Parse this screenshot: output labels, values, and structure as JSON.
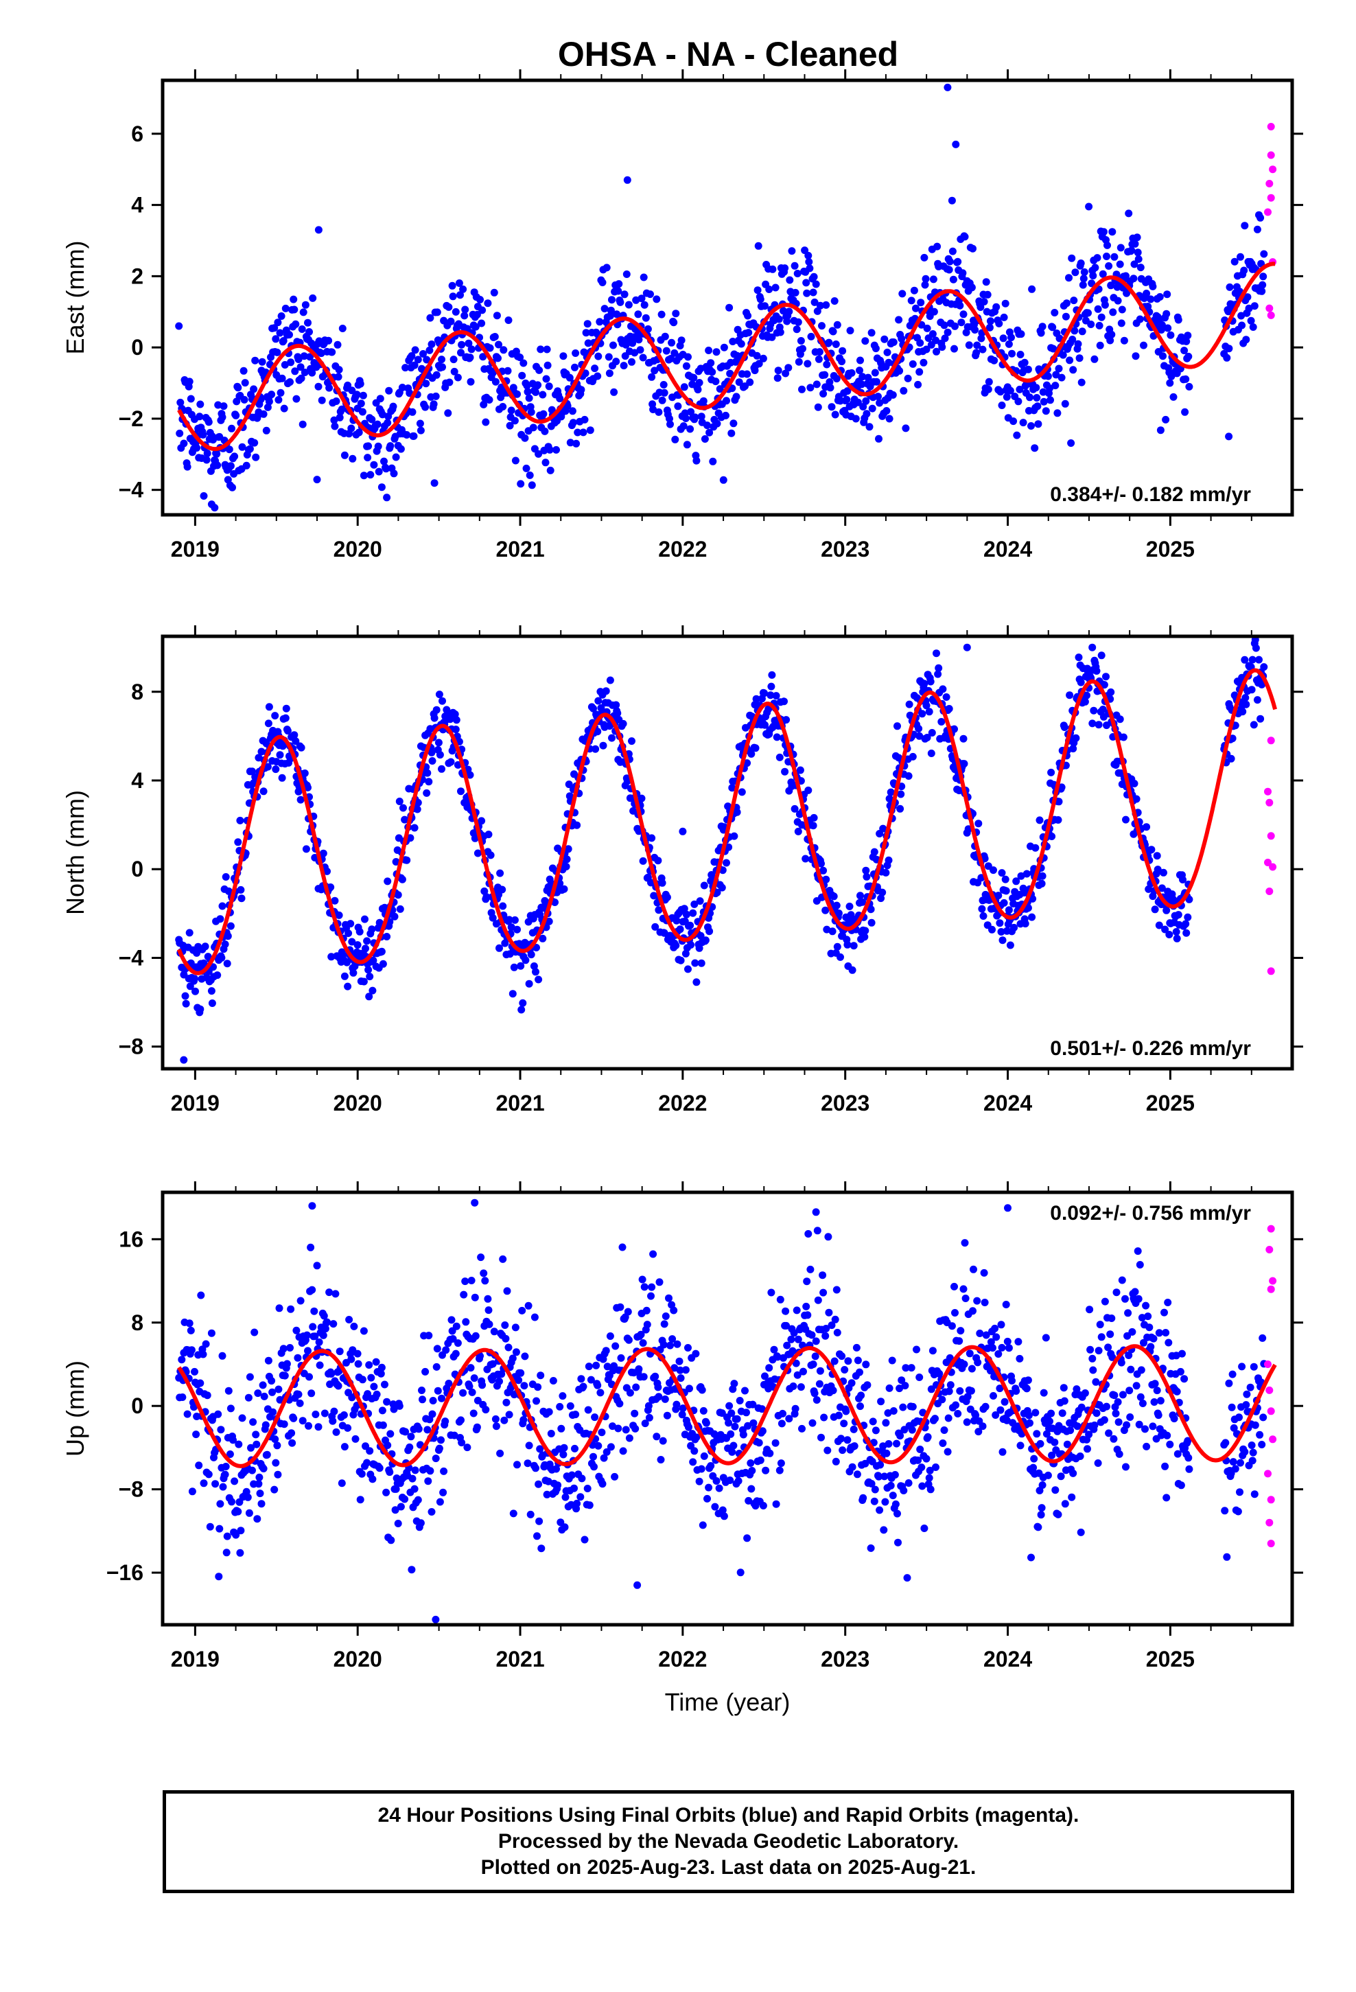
{
  "figure_title": "OHSA  - NA - Cleaned",
  "colors": {
    "final_orbits": "#0000ff",
    "rapid_orbits": "#ff00ff",
    "model_fit": "#ff0000",
    "frame": "#000000"
  },
  "chart_data": [
    {
      "type": "scatter",
      "panel": "east",
      "title": "OHSA  - NA - Cleaned",
      "ylabel": "East (mm)",
      "xlabel": "",
      "xlim": [
        2018.8,
        2025.75
      ],
      "ylim": [
        -4.7,
        7.5
      ],
      "yticks": [
        6,
        4,
        2,
        0,
        -2,
        -4
      ],
      "xticks": [
        2019,
        2020,
        2021,
        2022,
        2023,
        2024,
        2025
      ],
      "rate_label": "0.384+/- 0.182 mm/yr",
      "rate_position": "bottom-right",
      "fit": {
        "start": 2018.9,
        "end": 2025.65,
        "trend": 0.384,
        "intercept": -1.55,
        "ref_year": 2019.0,
        "annual_amp": 1.35,
        "annual_peak": 0.63,
        "offset_after": 2025.0,
        "gaps": []
      },
      "series": [
        {
          "name": "Final Orbits",
          "color": "#0000ff",
          "start": 2018.9,
          "end": 2025.58,
          "gaps": [
            [
              2025.12,
              2025.33
            ]
          ],
          "scatter": 0.85,
          "outliers": [
            [
              2023.63,
              7.3
            ],
            [
              2023.68,
              5.7
            ],
            [
              2021.66,
              4.7
            ],
            [
              2019.76,
              3.3
            ],
            [
              2025.36,
              -2.5
            ],
            [
              2019.12,
              -4.5
            ]
          ]
        },
        {
          "name": "Rapid Orbits",
          "color": "#ff00ff",
          "points": [
            [
              2025.62,
              6.2
            ],
            [
              2025.62,
              5.4
            ],
            [
              2025.63,
              5.0
            ],
            [
              2025.61,
              4.6
            ],
            [
              2025.62,
              4.2
            ],
            [
              2025.6,
              3.8
            ],
            [
              2025.63,
              2.4
            ],
            [
              2025.61,
              1.1
            ],
            [
              2025.62,
              0.9
            ]
          ]
        }
      ]
    },
    {
      "type": "scatter",
      "panel": "north",
      "ylabel": "North (mm)",
      "xlabel": "",
      "xlim": [
        2018.8,
        2025.75
      ],
      "ylim": [
        -9,
        10.5
      ],
      "yticks": [
        8,
        4,
        0,
        -4,
        -8
      ],
      "xticks": [
        2019,
        2020,
        2021,
        2022,
        2023,
        2024,
        2025
      ],
      "rate_label": "0.501+/- 0.226 mm/yr",
      "rate_position": "bottom-right",
      "fit": {
        "start": 2018.9,
        "end": 2025.65,
        "trend": 0.501,
        "intercept": 0.2,
        "ref_year": 2019.0,
        "annual_amp": 5.2,
        "annual_peak": 0.52,
        "semi_amp": 0.3
      },
      "series": [
        {
          "name": "Final Orbits",
          "color": "#0000ff",
          "start": 2018.9,
          "end": 2025.58,
          "gaps": [
            [
              2025.12,
              2025.33
            ]
          ],
          "scatter": 0.85,
          "outliers": [
            [
              2018.93,
              -8.6
            ],
            [
              2022.0,
              1.7
            ],
            [
              2023.75,
              10.0
            ],
            [
              2024.52,
              10.0
            ]
          ]
        },
        {
          "name": "Rapid Orbits",
          "color": "#ff00ff",
          "points": [
            [
              2025.62,
              5.8
            ],
            [
              2025.6,
              3.5
            ],
            [
              2025.61,
              3.0
            ],
            [
              2025.62,
              1.5
            ],
            [
              2025.6,
              0.3
            ],
            [
              2025.63,
              0.1
            ],
            [
              2025.61,
              -1.0
            ],
            [
              2025.62,
              -4.6
            ]
          ]
        }
      ]
    },
    {
      "type": "scatter",
      "panel": "up",
      "ylabel": "Up (mm)",
      "xlabel": "Time (year)",
      "xlim": [
        2018.8,
        2025.75
      ],
      "ylim": [
        -21,
        20.5
      ],
      "yticks": [
        16,
        8,
        0,
        -8,
        -16
      ],
      "xticks": [
        2019,
        2020,
        2021,
        2022,
        2023,
        2024,
        2025
      ],
      "rate_label": "0.092+/- 0.756 mm/yr",
      "rate_position": "top-right",
      "fit": {
        "start": 2018.9,
        "end": 2025.65,
        "trend": 0.092,
        "intercept": -0.3,
        "ref_year": 2019.0,
        "annual_amp": 5.5,
        "annual_peak": 0.78
      },
      "series": [
        {
          "name": "Final Orbits",
          "color": "#0000ff",
          "start": 2018.9,
          "end": 2025.58,
          "gaps": [
            [
              2025.12,
              2025.33
            ]
          ],
          "scatter": 4.2,
          "outliers": [
            [
              2020.48,
              -20.5
            ],
            [
              2020.72,
              19.5
            ],
            [
              2019.72,
              19.2
            ],
            [
              2022.82,
              18.6
            ],
            [
              2024.0,
              19.0
            ],
            [
              2021.72,
              -17.2
            ]
          ]
        },
        {
          "name": "Rapid Orbits",
          "color": "#ff00ff",
          "points": [
            [
              2025.62,
              17.0
            ],
            [
              2025.61,
              15.0
            ],
            [
              2025.63,
              12.0
            ],
            [
              2025.62,
              11.2
            ],
            [
              2025.6,
              4.0
            ],
            [
              2025.61,
              1.5
            ],
            [
              2025.62,
              -0.5
            ],
            [
              2025.63,
              -3.2
            ],
            [
              2025.6,
              -6.5
            ],
            [
              2025.62,
              -9.0
            ],
            [
              2025.61,
              -11.2
            ],
            [
              2025.62,
              -13.2
            ]
          ]
        }
      ]
    }
  ],
  "footer": {
    "line1": "24 Hour Positions Using Final Orbits (blue) and Rapid Orbits (magenta).",
    "line2": "Processed by the Nevada Geodetic Laboratory.",
    "line3": "Plotted on 2025-Aug-23. Last data on 2025-Aug-21."
  }
}
